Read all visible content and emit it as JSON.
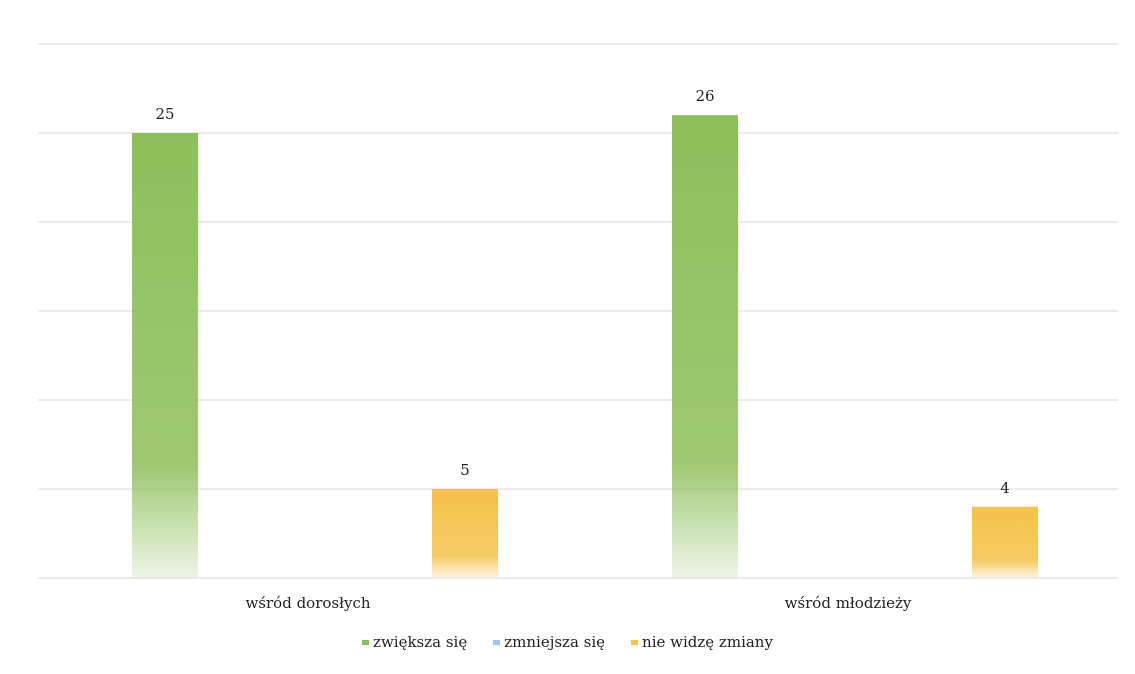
{
  "chart_data": {
    "type": "bar",
    "categories": [
      "wśród dorosłych",
      "wśród młodzieży"
    ],
    "series": [
      {
        "name": "zwiększa się",
        "values": [
          25,
          26
        ],
        "color": "#8dbf5a"
      },
      {
        "name": "zmniejsza się",
        "values": [
          0,
          0
        ],
        "color": "#9fc6e6"
      },
      {
        "name": "nie widzę zmiany",
        "values": [
          5,
          4
        ],
        "color": "#f5c24a"
      }
    ],
    "ylim": [
      0,
      30
    ],
    "grid": true,
    "legend_position": "bottom",
    "data_labels": true
  }
}
